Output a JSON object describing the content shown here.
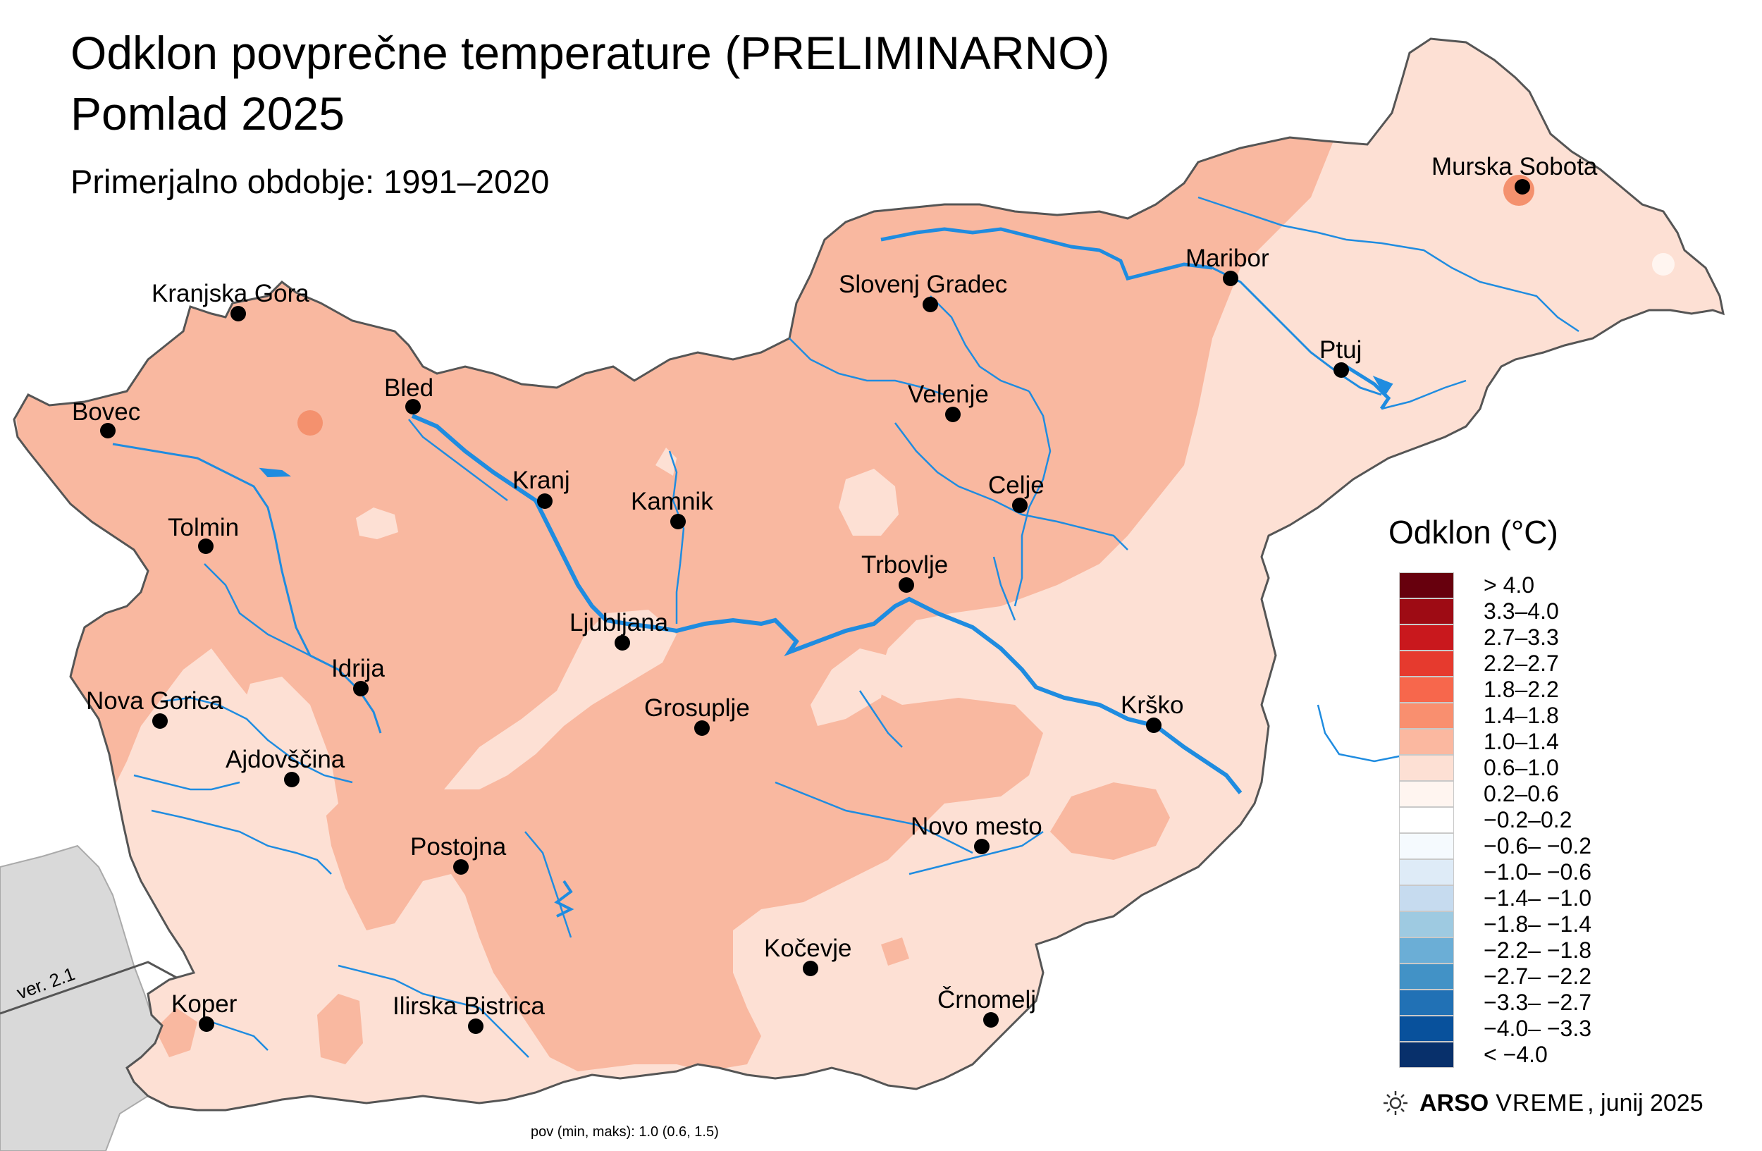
{
  "title_line1": "Odklon povprečne temperature (PRELIMINARNO)",
  "title_line2": "Pomlad 2025",
  "subtitle": "Primerjalno obdobje: 1991–2020",
  "version": "ver. 2.1",
  "footer_stats": "pov (min, maks): 1.0 (0.6, 1.5)",
  "credit": {
    "brand": "ARSO",
    "brand2": "VREME",
    "date": ", junij 2025",
    "icon": "sun-icon"
  },
  "colors": {
    "band_1_0_1_4": "#f9b8a0",
    "band_0_6_1_0": "#fde0d4",
    "band_1_4_1_8": "#f4916e",
    "water": "#1f8ce0",
    "neighbor": "#d9d9d9",
    "border": "#555555"
  },
  "legend": {
    "title": "Odklon (°C)",
    "items": [
      {
        "label": "> 4.0",
        "color": "#67000d"
      },
      {
        "label": "3.3–4.0",
        "color": "#9e0b14"
      },
      {
        "label": "2.7–3.3",
        "color": "#c9181d"
      },
      {
        "label": "2.2–2.7",
        "color": "#e63a2e"
      },
      {
        "label": "1.8–2.2",
        "color": "#f7674c"
      },
      {
        "label": "1.4–1.8",
        "color": "#f98f6f"
      },
      {
        "label": "1.0–1.4",
        "color": "#fbb8a0"
      },
      {
        "label": "0.6–1.0",
        "color": "#fde0d4"
      },
      {
        "label": "0.2–0.6",
        "color": "#fff5f0"
      },
      {
        "label": "−0.2–0.2",
        "color": "#ffffff"
      },
      {
        "label": "−0.6– −0.2",
        "color": "#f5fafe"
      },
      {
        "label": "−1.0– −0.6",
        "color": "#deebf7"
      },
      {
        "label": "−1.4– −1.0",
        "color": "#c6dbef"
      },
      {
        "label": "−1.8– −1.4",
        "color": "#9ecae1"
      },
      {
        "label": "−2.2– −1.8",
        "color": "#6baed6"
      },
      {
        "label": "−2.7– −2.2",
        "color": "#4292c6"
      },
      {
        "label": "−3.3– −2.7",
        "color": "#2171b5"
      },
      {
        "label": "−4.0– −3.3",
        "color": "#08519c"
      },
      {
        "label": "< −4.0",
        "color": "#08306b"
      }
    ]
  },
  "cities": [
    {
      "name": "Kranjska Gora"
    },
    {
      "name": "Bled"
    },
    {
      "name": "Bovec"
    },
    {
      "name": "Kranj"
    },
    {
      "name": "Kamnik"
    },
    {
      "name": "Tolmin"
    },
    {
      "name": "Ljubljana"
    },
    {
      "name": "Idrija"
    },
    {
      "name": "Nova Gorica"
    },
    {
      "name": "Ajdovščina"
    },
    {
      "name": "Postojna"
    },
    {
      "name": "Koper"
    },
    {
      "name": "Ilirska Bistrica"
    },
    {
      "name": "Grosuplje"
    },
    {
      "name": "Kočevje"
    },
    {
      "name": "Črnomelj"
    },
    {
      "name": "Novo mesto"
    },
    {
      "name": "Krško"
    },
    {
      "name": "Trbovlje"
    },
    {
      "name": "Celje"
    },
    {
      "name": "Velenje"
    },
    {
      "name": "Slovenj Gradec"
    },
    {
      "name": "Maribor"
    },
    {
      "name": "Ptuj"
    },
    {
      "name": "Murska Sobota"
    }
  ]
}
